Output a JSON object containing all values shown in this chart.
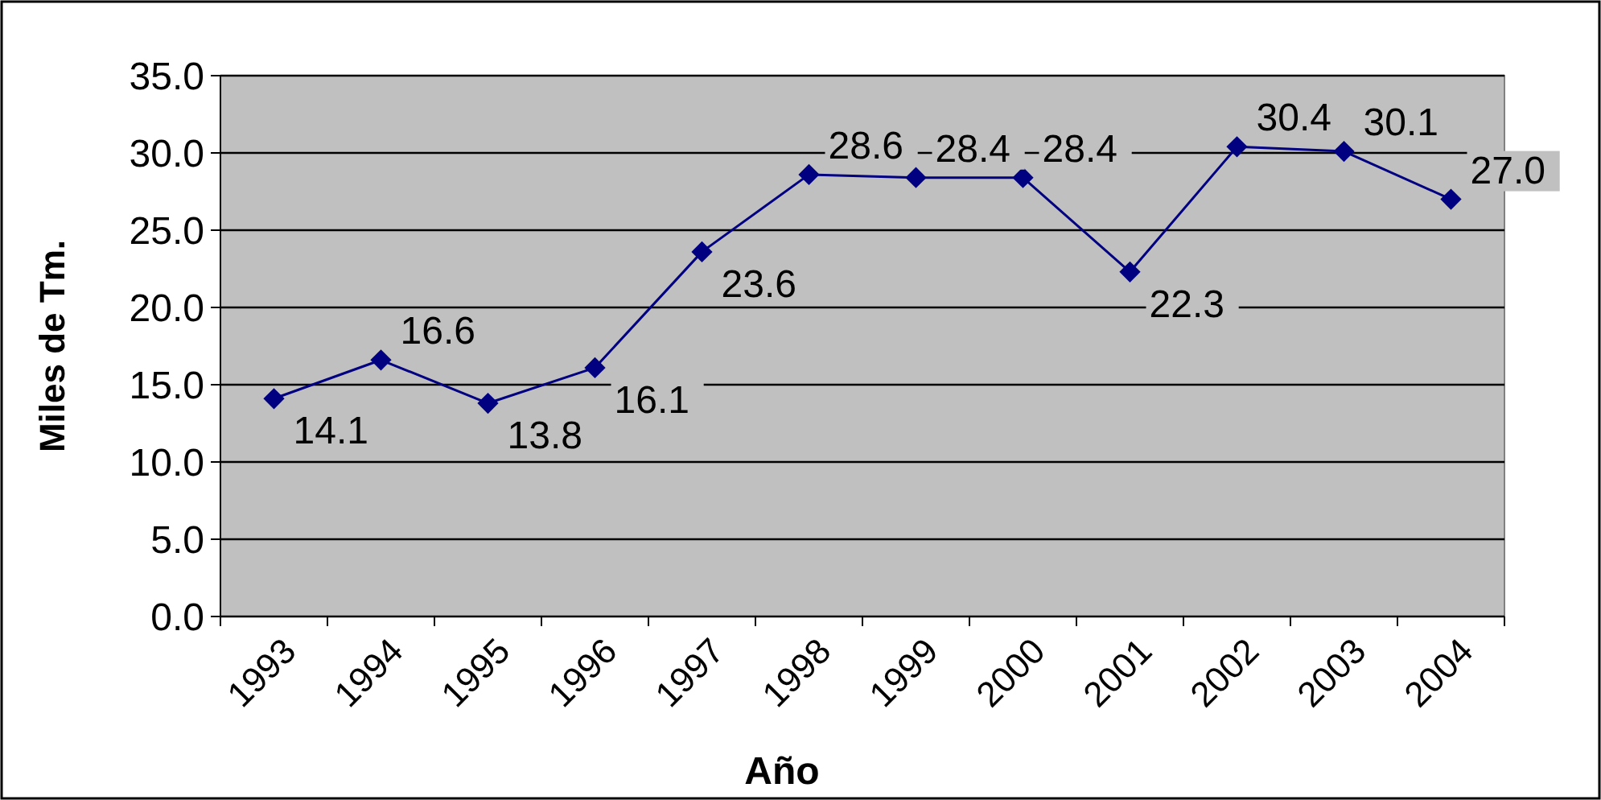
{
  "chart_data": {
    "type": "line",
    "xlabel": "Año",
    "ylabel": "Miles de Tm.",
    "categories": [
      "1993",
      "1994",
      "1995",
      "1996",
      "1997",
      "1998",
      "1999",
      "2000",
      "2001",
      "2002",
      "2003",
      "2004"
    ],
    "series": [
      {
        "color": "#000080",
        "values": [
          14.1,
          16.6,
          13.8,
          16.1,
          23.6,
          28.6,
          28.4,
          28.4,
          22.3,
          30.4,
          30.1,
          27.0
        ],
        "value_labels": [
          "14.1",
          "16.6",
          "13.8",
          "16.1",
          "23.6",
          "28.6",
          "28.4",
          "28.4",
          "22.3",
          "30.4",
          "30.1",
          "27.0"
        ]
      }
    ],
    "ylim": [
      0,
      35
    ],
    "yticks": [
      {
        "value": 0,
        "label": "0.0"
      },
      {
        "value": 5,
        "label": "5.0"
      },
      {
        "value": 10,
        "label": "10.0"
      },
      {
        "value": 15,
        "label": "15.0"
      },
      {
        "value": 20,
        "label": "20.0"
      },
      {
        "value": 25,
        "label": "25.0"
      },
      {
        "value": 30,
        "label": "30.0"
      },
      {
        "value": 35,
        "label": "35.0"
      }
    ],
    "grid": "y",
    "marker": "diamond",
    "line_style": "solid"
  }
}
